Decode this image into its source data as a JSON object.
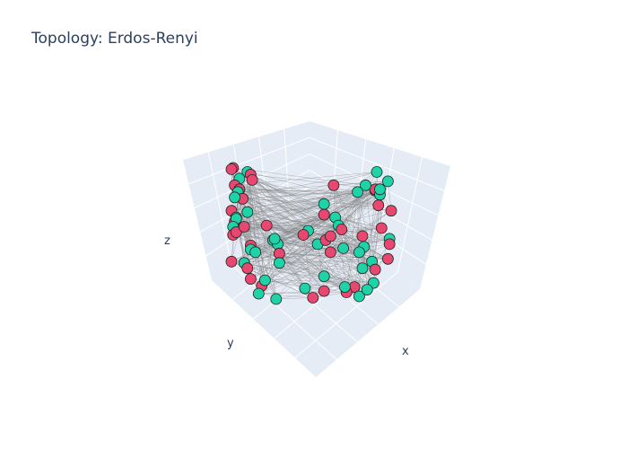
{
  "chart_data": {
    "type": "scatter3d",
    "title": "Topology: Erdos-Renyi",
    "xlabel": "x",
    "ylabel": "y",
    "zlabel": "z",
    "grid": true,
    "legend": "none",
    "colors": {
      "series_a": "#1dd3a7",
      "series_b": "#e8476f",
      "edges": "#808080",
      "scene_bg": "#e5ecf6",
      "gridline": "#ffffff",
      "marker_outline": "#222222"
    },
    "nodes": [
      [
        0.01,
        0.0,
        0.98,
        0
      ],
      [
        0.0,
        0.0,
        0.97,
        0
      ],
      [
        0.1,
        0.0,
        0.95,
        1
      ],
      [
        0.91,
        0.0,
        0.95,
        1
      ],
      [
        0.98,
        0.0,
        0.88,
        1
      ],
      [
        0.12,
        0.0,
        0.93,
        0
      ],
      [
        0.05,
        0.0,
        0.9,
        1
      ],
      [
        0.02,
        0.0,
        0.85,
        0
      ],
      [
        0.64,
        0.0,
        0.85,
        0
      ],
      [
        0.9,
        0.0,
        0.81,
        0
      ],
      [
        0.05,
        0.0,
        0.82,
        0
      ],
      [
        0.9,
        0.0,
        0.82,
        0
      ],
      [
        0.93,
        0.0,
        0.78,
        1
      ],
      [
        0.93,
        0.0,
        0.82,
        1
      ],
      [
        0.04,
        0.0,
        0.8,
        1
      ],
      [
        0.07,
        0.0,
        0.75,
        0
      ],
      [
        0.1,
        0.0,
        0.65,
        1
      ],
      [
        0.58,
        0.0,
        0.71,
        1
      ],
      [
        0.84,
        0.0,
        0.85,
        1
      ],
      [
        0.79,
        0.0,
        0.8,
        1
      ],
      [
        0.02,
        0.0,
        0.76,
        1
      ],
      [
        0.0,
        0.0,
        0.66,
        0
      ],
      [
        0.03,
        0.0,
        0.61,
        1
      ],
      [
        0.92,
        0.0,
        0.7,
        0
      ],
      [
        1.0,
        0.0,
        0.66,
        0
      ],
      [
        0.02,
        0.0,
        0.58,
        0
      ],
      [
        0.03,
        0.0,
        0.6,
        1
      ],
      [
        0.65,
        0.0,
        0.61,
        1
      ],
      [
        0.01,
        0.0,
        0.54,
        1
      ],
      [
        0.01,
        0.0,
        0.48,
        0
      ],
      [
        0.03,
        0.0,
        0.5,
        0
      ],
      [
        0.67,
        0.0,
        0.55,
        1
      ],
      [
        0.69,
        0.0,
        0.52,
        0
      ],
      [
        0.08,
        0.0,
        0.54,
        0
      ],
      [
        0.94,
        0.0,
        0.53,
        0
      ],
      [
        0.12,
        0.0,
        0.4,
        0
      ],
      [
        0.26,
        0.0,
        0.44,
        1
      ],
      [
        0.29,
        0.0,
        0.41,
        1
      ],
      [
        0.54,
        0.0,
        0.41,
        1
      ],
      [
        0.12,
        0.0,
        0.37,
        1
      ],
      [
        0.48,
        0.0,
        0.51,
        1
      ],
      [
        0.59,
        0.0,
        0.44,
        0
      ],
      [
        0.82,
        0.0,
        0.47,
        0
      ],
      [
        0.62,
        0.0,
        0.47,
        0
      ],
      [
        0.83,
        0.0,
        0.39,
        1
      ],
      [
        0.99,
        0.0,
        0.45,
        1
      ],
      [
        0.99,
        0.0,
        0.41,
        0
      ],
      [
        0.15,
        0.0,
        0.35,
        1
      ],
      [
        0.3,
        0.0,
        0.34,
        0
      ],
      [
        0.0,
        0.0,
        0.28,
        0
      ],
      [
        0.08,
        0.0,
        0.27,
        1
      ],
      [
        0.62,
        0.0,
        0.35,
        0
      ],
      [
        0.7,
        0.0,
        0.38,
        1
      ],
      [
        0.8,
        0.0,
        0.35,
        1
      ],
      [
        0.88,
        0.0,
        0.28,
        1
      ],
      [
        0.98,
        0.0,
        0.3,
        0
      ],
      [
        0.1,
        0.0,
        0.23,
        0
      ],
      [
        0.82,
        0.0,
        0.23,
        1
      ],
      [
        0.9,
        0.0,
        0.22,
        0
      ],
      [
        0.12,
        0.0,
        0.15,
        0
      ],
      [
        0.19,
        0.0,
        0.1,
        0
      ],
      [
        0.21,
        0.0,
        0.14,
        1
      ],
      [
        0.46,
        0.0,
        0.08,
        1
      ],
      [
        0.58,
        0.0,
        0.17,
        1
      ],
      [
        0.89,
        0.0,
        0.12,
        1
      ],
      [
        0.17,
        0.0,
        0.04,
        1
      ],
      [
        0.28,
        0.0,
        0.0,
        1
      ],
      [
        0.51,
        0.0,
        0.01,
        0
      ],
      [
        0.58,
        0.0,
        0.06,
        0
      ],
      [
        0.77,
        0.0,
        0.09,
        0
      ],
      [
        0.72,
        0.0,
        0.05,
        0
      ],
      [
        0.71,
        0.0,
        0.09,
        1
      ],
      [
        0.8,
        0.0,
        0.02,
        1
      ],
      [
        0.85,
        0.0,
        0.07,
        1
      ],
      [
        0.27,
        0.0,
        0.45,
        1
      ],
      [
        0.45,
        0.0,
        0.48,
        0
      ],
      [
        0.3,
        0.0,
        0.27,
        1
      ],
      [
        0.22,
        0.0,
        0.55,
        0
      ],
      [
        0.58,
        0.0,
        0.63,
        0
      ],
      [
        0.13,
        0.0,
        0.89,
        0
      ]
    ]
  }
}
